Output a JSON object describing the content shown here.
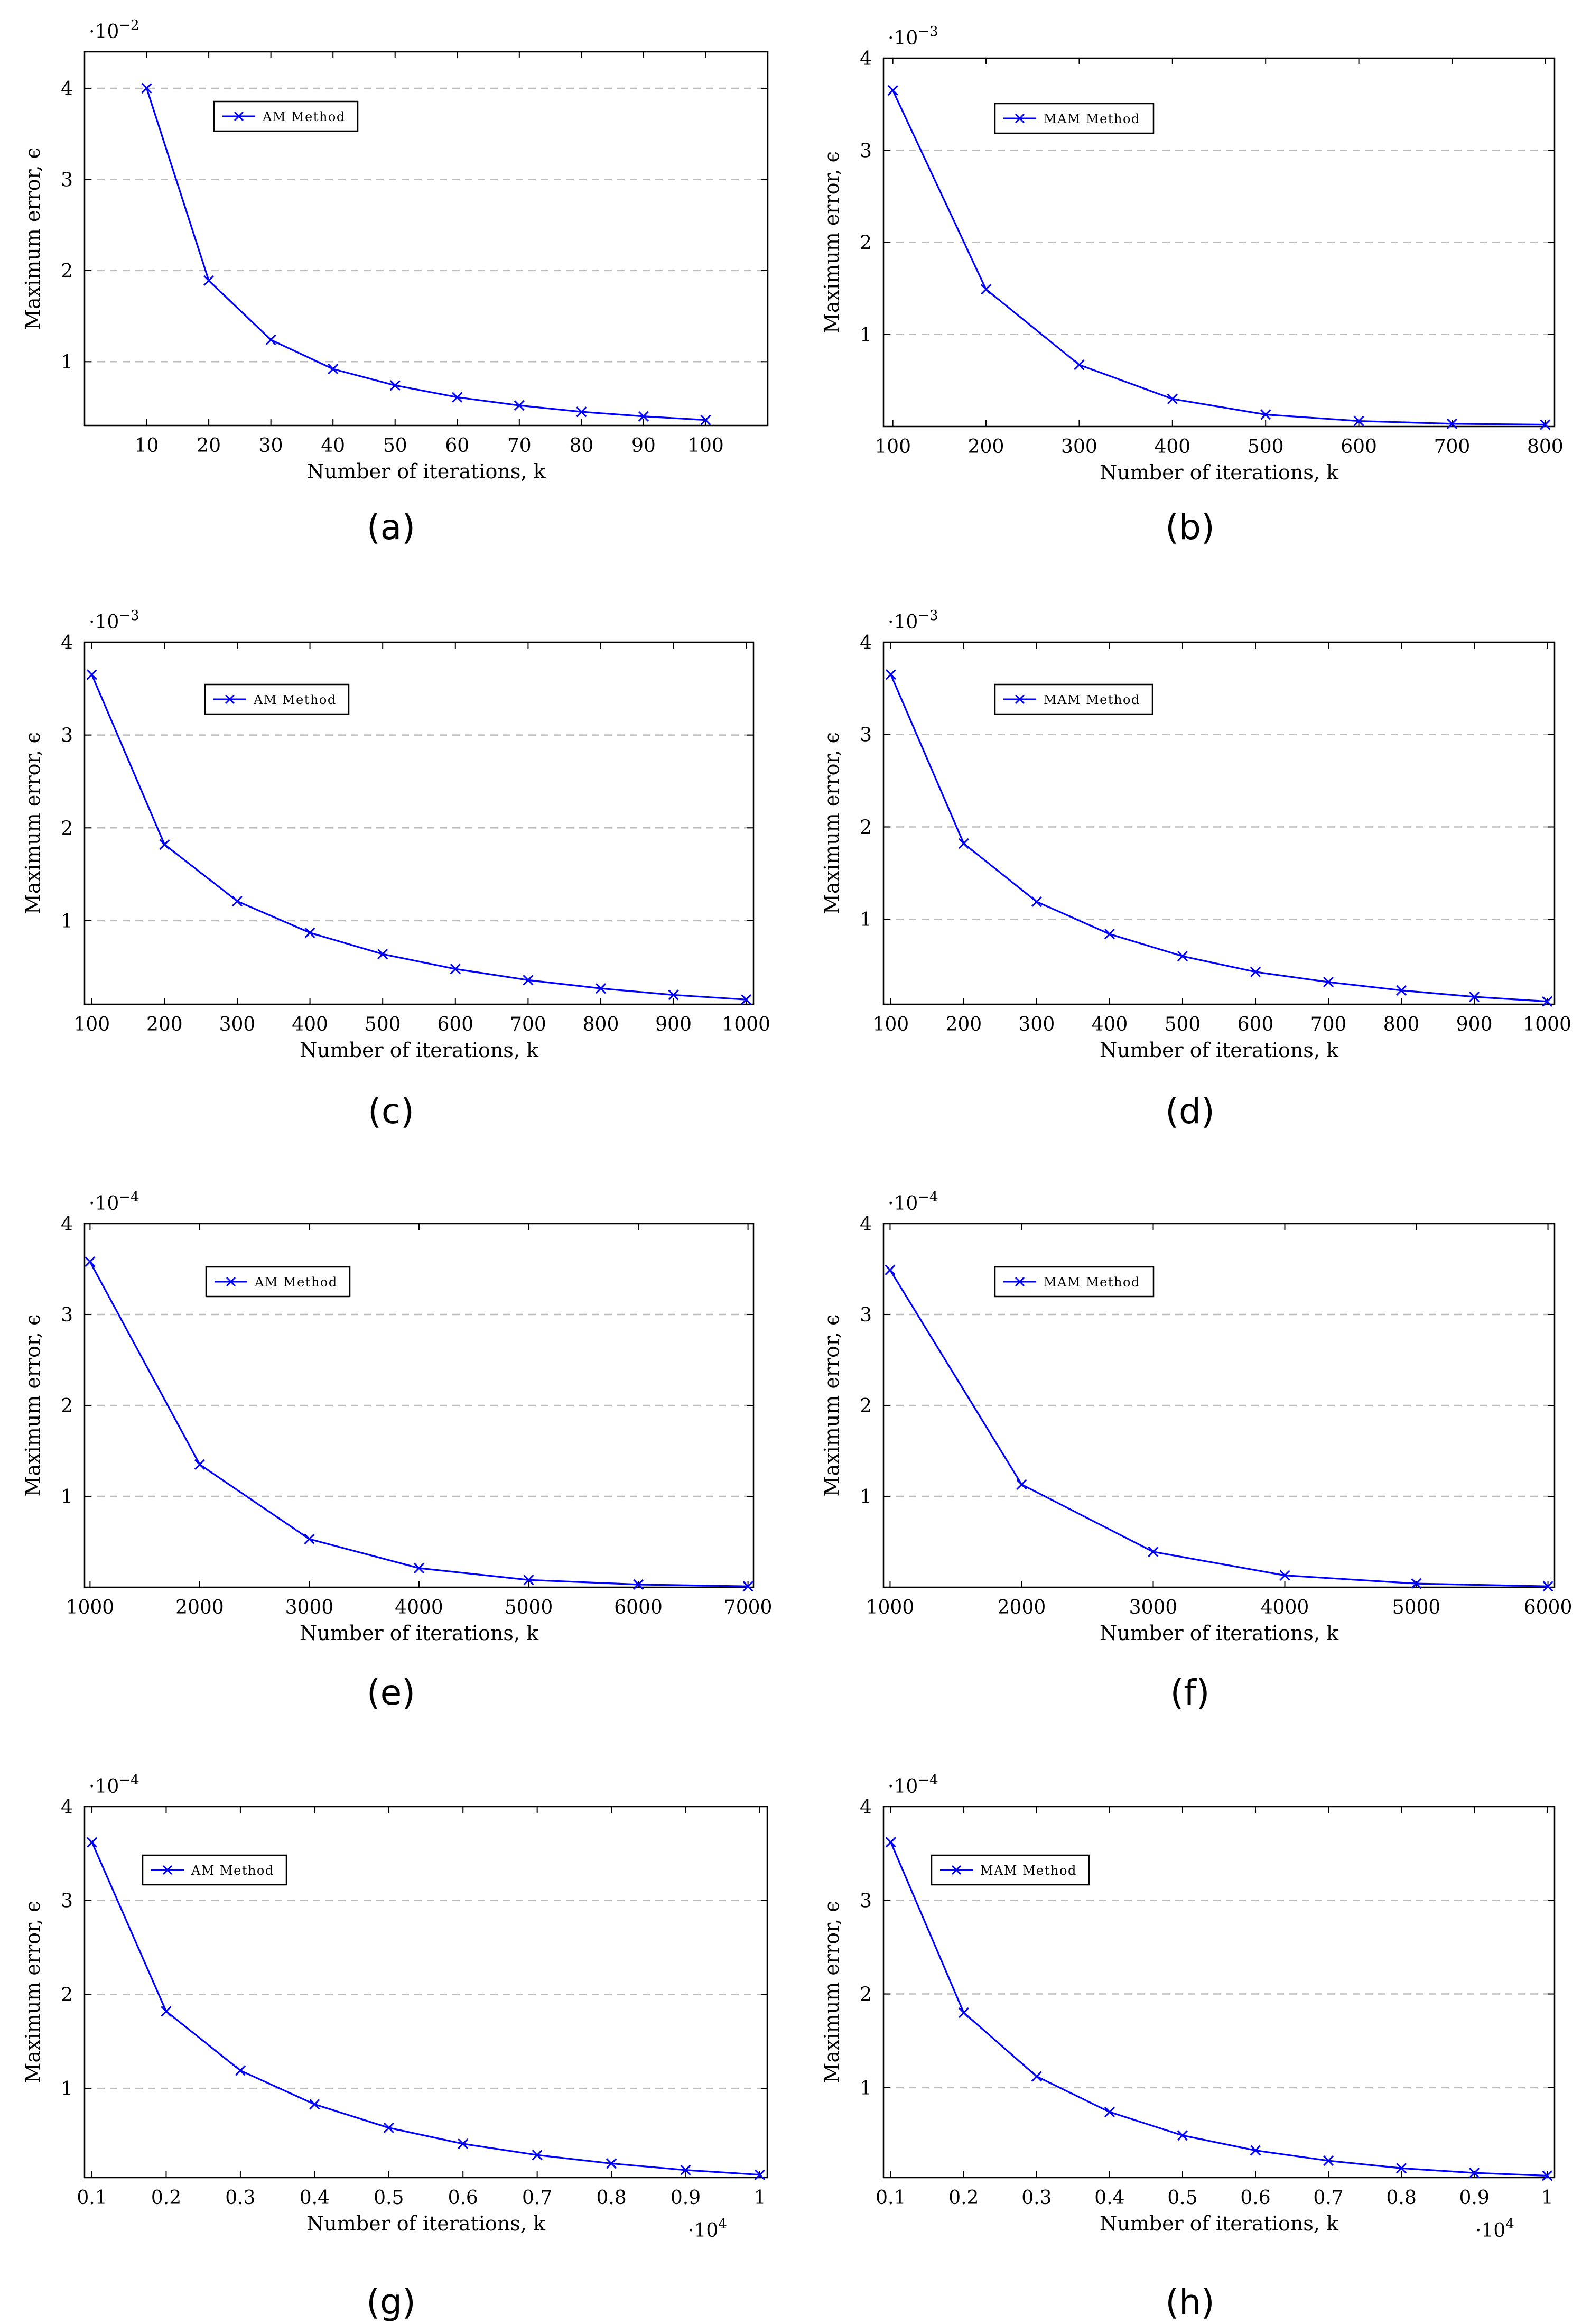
{
  "figure": {
    "axis_color": "#000000",
    "series_color": "#0000ff",
    "grid_color": "#bdbdbd"
  },
  "chart_data": [
    {
      "panel": "(a)",
      "type": "line",
      "title": "",
      "xlabel": "Number of iterations, k",
      "ylabel": "Maximum error, ϵ",
      "y_exponent": "·10",
      "y_exponent_power": "−2",
      "x_exponent": "",
      "x_exponent_power": "",
      "series": [
        {
          "name": "AM Method",
          "x": [
            10,
            20,
            30,
            40,
            50,
            60,
            70,
            80,
            90,
            100
          ],
          "y": [
            4.0,
            1.89,
            1.24,
            0.92,
            0.74,
            0.61,
            0.52,
            0.45,
            0.4,
            0.36
          ]
        }
      ],
      "xlim": [
        0,
        110
      ],
      "ylim": [
        0.3,
        4.4
      ],
      "xticks": [
        10,
        20,
        30,
        40,
        50,
        60,
        70,
        80,
        90,
        100
      ],
      "xtick_labels": [
        "10",
        "20",
        "30",
        "40",
        "50",
        "60",
        "70",
        "80",
        "90",
        "100"
      ],
      "yticks": [
        1,
        2,
        3,
        4
      ],
      "ytick_labels": [
        "1",
        "2",
        "3",
        "4"
      ],
      "grid": "horizontal dashed",
      "legend_position": "top-left"
    },
    {
      "panel": "(b)",
      "type": "line",
      "title": "",
      "xlabel": "Number of iterations, k",
      "ylabel": "Maximum error, ϵ",
      "y_exponent": "·10",
      "y_exponent_power": "−3",
      "x_exponent": "",
      "x_exponent_power": "",
      "series": [
        {
          "name": "MAM Method",
          "x": [
            100,
            200,
            300,
            400,
            500,
            600,
            700,
            800
          ],
          "y": [
            3.65,
            1.49,
            0.67,
            0.3,
            0.13,
            0.06,
            0.03,
            0.02
          ]
        }
      ],
      "xlim": [
        90,
        810
      ],
      "ylim": [
        0.0,
        4.0
      ],
      "xticks": [
        100,
        200,
        300,
        400,
        500,
        600,
        700,
        800
      ],
      "xtick_labels": [
        "100",
        "200",
        "300",
        "400",
        "500",
        "600",
        "700",
        "800"
      ],
      "yticks": [
        1,
        2,
        3,
        4
      ],
      "ytick_labels": [
        "1",
        "2",
        "3",
        "4"
      ],
      "grid": "horizontal dashed",
      "legend_position": "top-left"
    },
    {
      "panel": "(c)",
      "type": "line",
      "title": "",
      "xlabel": "Number of iterations, k",
      "ylabel": "Maximum error, ϵ",
      "y_exponent": "·10",
      "y_exponent_power": "−3",
      "x_exponent": "",
      "x_exponent_power": "",
      "series": [
        {
          "name": "AM Method",
          "x": [
            100,
            200,
            300,
            400,
            500,
            600,
            700,
            800,
            900,
            1000
          ],
          "y": [
            3.65,
            1.82,
            1.21,
            0.87,
            0.64,
            0.48,
            0.36,
            0.27,
            0.2,
            0.15
          ]
        }
      ],
      "xlim": [
        90,
        1010
      ],
      "ylim": [
        0.1,
        4.0
      ],
      "xticks": [
        100,
        200,
        300,
        400,
        500,
        600,
        700,
        800,
        900,
        1000
      ],
      "xtick_labels": [
        "100",
        "200",
        "300",
        "400",
        "500",
        "600",
        "700",
        "800",
        "900",
        "1000"
      ],
      "yticks": [
        1,
        2,
        3,
        4
      ],
      "ytick_labels": [
        "1",
        "2",
        "3",
        "4"
      ],
      "grid": "horizontal dashed",
      "legend_position": "top-left"
    },
    {
      "panel": "(d)",
      "type": "line",
      "title": "",
      "xlabel": "Number of iterations, k",
      "ylabel": "Maximum error, ϵ",
      "y_exponent": "·10",
      "y_exponent_power": "−3",
      "x_exponent": "",
      "x_exponent_power": "",
      "series": [
        {
          "name": "MAM Method",
          "x": [
            100,
            200,
            300,
            400,
            500,
            600,
            700,
            800,
            900,
            1000
          ],
          "y": [
            3.65,
            1.82,
            1.19,
            0.84,
            0.6,
            0.43,
            0.32,
            0.23,
            0.16,
            0.11
          ]
        }
      ],
      "xlim": [
        90,
        1010
      ],
      "ylim": [
        0.08,
        4.0
      ],
      "xticks": [
        100,
        200,
        300,
        400,
        500,
        600,
        700,
        800,
        900,
        1000
      ],
      "xtick_labels": [
        "100",
        "200",
        "300",
        "400",
        "500",
        "600",
        "700",
        "800",
        "900",
        "1000"
      ],
      "yticks": [
        1,
        2,
        3,
        4
      ],
      "ytick_labels": [
        "1",
        "2",
        "3",
        "4"
      ],
      "grid": "horizontal dashed",
      "legend_position": "top-left"
    },
    {
      "panel": "(e)",
      "type": "line",
      "title": "",
      "xlabel": "Number of iterations, k",
      "ylabel": "Maximum error, ϵ",
      "y_exponent": "·10",
      "y_exponent_power": "−4",
      "x_exponent": "",
      "x_exponent_power": "",
      "series": [
        {
          "name": "AM Method",
          "x": [
            1000,
            2000,
            3000,
            4000,
            5000,
            6000,
            7000
          ],
          "y": [
            3.58,
            1.35,
            0.53,
            0.21,
            0.08,
            0.03,
            0.01
          ]
        }
      ],
      "xlim": [
        950,
        7050
      ],
      "ylim": [
        0.0,
        4.0
      ],
      "xticks": [
        1000,
        2000,
        3000,
        4000,
        5000,
        6000,
        7000
      ],
      "xtick_labels": [
        "1000",
        "2000",
        "3000",
        "4000",
        "5000",
        "6000",
        "7000"
      ],
      "yticks": [
        1,
        2,
        3,
        4
      ],
      "ytick_labels": [
        "1",
        "2",
        "3",
        "4"
      ],
      "grid": "horizontal dashed",
      "legend_position": "top-left"
    },
    {
      "panel": "(f)",
      "type": "line",
      "title": "",
      "xlabel": "Number of iterations, k",
      "ylabel": "Maximum error, ϵ",
      "y_exponent": "·10",
      "y_exponent_power": "−4",
      "x_exponent": "",
      "x_exponent_power": "",
      "series": [
        {
          "name": "MAM Method",
          "x": [
            1000,
            2000,
            3000,
            4000,
            5000,
            6000
          ],
          "y": [
            3.49,
            1.13,
            0.39,
            0.13,
            0.04,
            0.01
          ]
        }
      ],
      "xlim": [
        950,
        6050
      ],
      "ylim": [
        0.0,
        4.0
      ],
      "xticks": [
        1000,
        2000,
        3000,
        4000,
        5000,
        6000
      ],
      "xtick_labels": [
        "1000",
        "2000",
        "3000",
        "4000",
        "5000",
        "6000"
      ],
      "yticks": [
        1,
        2,
        3,
        4
      ],
      "ytick_labels": [
        "1",
        "2",
        "3",
        "4"
      ],
      "grid": "horizontal dashed",
      "legend_position": "top-left"
    },
    {
      "panel": "(g)",
      "type": "line",
      "title": "",
      "xlabel": "Number of iterations, k",
      "ylabel": "Maximum error, ϵ",
      "y_exponent": "·10",
      "y_exponent_power": "−4",
      "x_exponent": "·10",
      "x_exponent_power": "4",
      "series": [
        {
          "name": "AM Method",
          "x": [
            0.1,
            0.2,
            0.3,
            0.4,
            0.5,
            0.6,
            0.7,
            0.8,
            0.9,
            1.0
          ],
          "y": [
            3.62,
            1.82,
            1.19,
            0.83,
            0.58,
            0.41,
            0.29,
            0.2,
            0.13,
            0.08
          ]
        }
      ],
      "xlim": [
        0.09,
        1.01
      ],
      "ylim": [
        0.05,
        4.0
      ],
      "xticks": [
        0.1,
        0.2,
        0.3,
        0.4,
        0.5,
        0.6,
        0.7,
        0.8,
        0.9,
        1.0
      ],
      "xtick_labels": [
        "0.1",
        "0.2",
        "0.3",
        "0.4",
        "0.5",
        "0.6",
        "0.7",
        "0.8",
        "0.9",
        "1"
      ],
      "yticks": [
        1,
        2,
        3,
        4
      ],
      "ytick_labels": [
        "1",
        "2",
        "3",
        "4"
      ],
      "grid": "horizontal dashed",
      "legend_position": "top-left"
    },
    {
      "panel": "(h)",
      "type": "line",
      "title": "",
      "xlabel": "Number of iterations, k",
      "ylabel": "Maximum error, ϵ",
      "y_exponent": "·10",
      "y_exponent_power": "−4",
      "x_exponent": "·10",
      "x_exponent_power": "4",
      "series": [
        {
          "name": "MAM Method",
          "x": [
            0.1,
            0.2,
            0.3,
            0.4,
            0.5,
            0.6,
            0.7,
            0.8,
            0.9,
            1.0
          ],
          "y": [
            3.62,
            1.8,
            1.12,
            0.74,
            0.49,
            0.33,
            0.22,
            0.14,
            0.09,
            0.06
          ]
        }
      ],
      "xlim": [
        0.09,
        1.01
      ],
      "ylim": [
        0.04,
        4.0
      ],
      "xticks": [
        0.1,
        0.2,
        0.3,
        0.4,
        0.5,
        0.6,
        0.7,
        0.8,
        0.9,
        1.0
      ],
      "xtick_labels": [
        "0.1",
        "0.2",
        "0.3",
        "0.4",
        "0.5",
        "0.6",
        "0.7",
        "0.8",
        "0.9",
        "1"
      ],
      "yticks": [
        1,
        2,
        3,
        4
      ],
      "ytick_labels": [
        "1",
        "2",
        "3",
        "4"
      ],
      "grid": "horizontal dashed",
      "legend_position": "top-left"
    }
  ]
}
